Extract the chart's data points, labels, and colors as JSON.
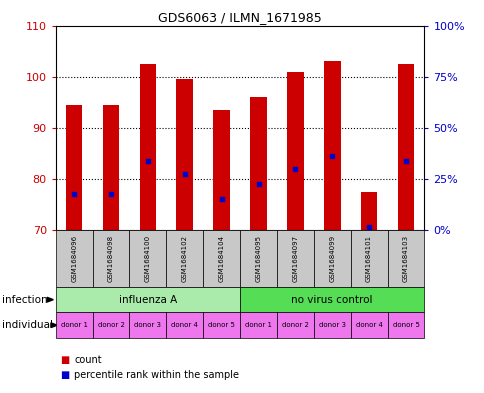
{
  "title": "GDS6063 / ILMN_1671985",
  "samples": [
    "GSM1684096",
    "GSM1684098",
    "GSM1684100",
    "GSM1684102",
    "GSM1684104",
    "GSM1684095",
    "GSM1684097",
    "GSM1684099",
    "GSM1684101",
    "GSM1684103"
  ],
  "bar_tops": [
    94.5,
    94.5,
    102.5,
    99.5,
    93.5,
    96.0,
    101.0,
    103.0,
    77.5,
    102.5
  ],
  "bar_bottoms": [
    70,
    70,
    70,
    70,
    70,
    70,
    70,
    70,
    70,
    70
  ],
  "blue_marker_y": [
    77.0,
    77.0,
    83.5,
    81.0,
    76.0,
    79.0,
    82.0,
    84.5,
    70.5,
    83.5
  ],
  "bar_color": "#cc0000",
  "blue_color": "#0000cc",
  "ylim_left": [
    70,
    110
  ],
  "ylim_right": [
    0,
    100
  ],
  "yticks_left": [
    70,
    80,
    90,
    100,
    110
  ],
  "ytick_labels_left": [
    "70",
    "80",
    "90",
    "100",
    "110"
  ],
  "yticks_right_vals": [
    0,
    25,
    50,
    75,
    100
  ],
  "ytick_labels_right": [
    "0%",
    "25%",
    "50%",
    "75%",
    "100%"
  ],
  "infection_groups": [
    {
      "label": "influenza A",
      "start": 0,
      "end": 5,
      "color": "#aaeaaa"
    },
    {
      "label": "no virus control",
      "start": 5,
      "end": 10,
      "color": "#55dd55"
    }
  ],
  "individual_labels": [
    "donor 1",
    "donor 2",
    "donor 3",
    "donor 4",
    "donor 5",
    "donor 1",
    "donor 2",
    "donor 3",
    "donor 4",
    "donor 5"
  ],
  "individual_color": "#ee77ee",
  "sample_bg_color": "#c8c8c8",
  "legend_count_color": "#cc0000",
  "legend_pct_color": "#0000cc",
  "infection_label": "infection",
  "individual_label": "individual",
  "legend_count_text": "count",
  "legend_pct_text": "percentile rank within the sample"
}
